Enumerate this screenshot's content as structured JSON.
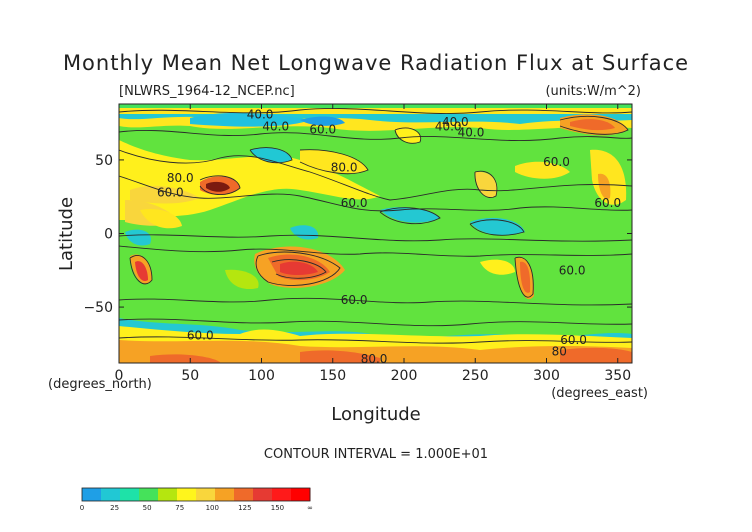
{
  "chart_data": {
    "type": "contour",
    "title": "Monthly Mean Net Longwave Radiation Flux at Surface",
    "subtitle_left": "[NLWRS_1964-12_NCEP.nc]",
    "subtitle_right": "(units:W/m^2)",
    "xlabel": "Longitude",
    "ylabel": "Latitude",
    "x_unit_label": "(degrees_east)",
    "y_unit_label": "(degrees_north)",
    "xlim": [
      0,
      360
    ],
    "ylim": [
      -88,
      88
    ],
    "xticks": [
      0,
      50,
      100,
      150,
      200,
      250,
      300,
      350
    ],
    "yticks": [
      -50,
      0,
      50
    ],
    "contour_interval_text": "CONTOUR INTERVAL = 1.000E+01",
    "contour_labels": [
      {
        "text": "40.0",
        "lon": 99,
        "lat": 78
      },
      {
        "text": "40.0",
        "lon": 110,
        "lat": 70
      },
      {
        "text": "40.0",
        "lon": 231,
        "lat": 70
      },
      {
        "text": "40.0",
        "lon": 247,
        "lat": 66
      },
      {
        "text": "40.0",
        "lon": 236,
        "lat": 73
      },
      {
        "text": "60.0",
        "lon": 143,
        "lat": 68
      },
      {
        "text": "80.0",
        "lon": 158,
        "lat": 42
      },
      {
        "text": "80.0",
        "lon": 43,
        "lat": 35
      },
      {
        "text": "60.0",
        "lon": 36,
        "lat": 25
      },
      {
        "text": "60.0",
        "lon": 165,
        "lat": 18
      },
      {
        "text": "60.0",
        "lon": 307,
        "lat": 46
      },
      {
        "text": "60.0",
        "lon": 343,
        "lat": 18
      },
      {
        "text": "60.0",
        "lon": 318,
        "lat": -28
      },
      {
        "text": "60.0",
        "lon": 319,
        "lat": -75
      },
      {
        "text": "60.0",
        "lon": 165,
        "lat": -48
      },
      {
        "text": "60.0",
        "lon": 57,
        "lat": -72
      },
      {
        "text": "80",
        "lon": 309,
        "lat": -83
      },
      {
        "text": "80.0",
        "lon": 179,
        "lat": -88
      }
    ],
    "colorbar": {
      "levels": [
        "0",
        "25",
        "50",
        "75",
        "100",
        "125",
        "150",
        "∞"
      ],
      "colors": [
        "#1f9fe6",
        "#21c8d4",
        "#1ee2a8",
        "#45e25a",
        "#b5e60f",
        "#fff51c",
        "#f9d63c",
        "#f6a224",
        "#ef6a2a",
        "#e63a33",
        "#ff1a1a",
        "#ff0000"
      ]
    }
  }
}
